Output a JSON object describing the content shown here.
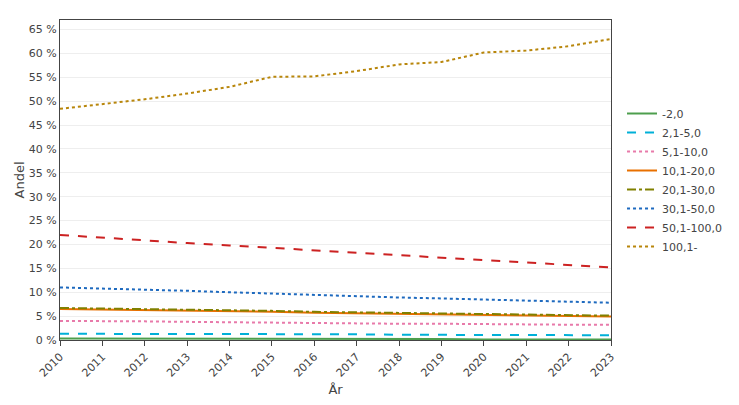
{
  "chart_data": {
    "type": "line",
    "x": [
      2010,
      2011,
      2012,
      2013,
      2014,
      2015,
      2016,
      2017,
      2018,
      2019,
      2020,
      2021,
      2022,
      2023
    ],
    "series": [
      {
        "name": "-2,0",
        "color": "#4d9e4d",
        "line_style": "solid",
        "values": [
          0.3,
          0.3,
          0.3,
          0.3,
          0.2,
          0.2,
          0.2,
          0.2,
          0.2,
          0.2,
          0.1,
          0.1,
          0.1,
          0.1
        ]
      },
      {
        "name": "2,1-5,0",
        "color": "#00b0d8",
        "line_style": "dash",
        "values": [
          1.3,
          1.3,
          1.3,
          1.3,
          1.2,
          1.2,
          1.2,
          1.2,
          1.1,
          1.1,
          1.1,
          1.0,
          1.0,
          1.0
        ]
      },
      {
        "name": "5,1-10,0",
        "color": "#e87aaa",
        "line_style": "dot",
        "values": [
          4.0,
          4.0,
          3.9,
          3.8,
          3.7,
          3.6,
          3.5,
          3.5,
          3.4,
          3.4,
          3.3,
          3.3,
          3.2,
          3.2
        ]
      },
      {
        "name": "10,1-20,0",
        "color": "#e87000",
        "line_style": "solid",
        "values": [
          6.5,
          6.4,
          6.3,
          6.2,
          6.0,
          5.9,
          5.7,
          5.6,
          5.5,
          5.4,
          5.3,
          5.2,
          5.0,
          4.9
        ]
      },
      {
        "name": "20,1-30,0",
        "color": "#808000",
        "line_style": "dashdot",
        "values": [
          6.7,
          6.6,
          6.5,
          6.4,
          6.3,
          6.1,
          5.9,
          5.8,
          5.7,
          5.6,
          5.5,
          5.4,
          5.3,
          5.1
        ]
      },
      {
        "name": "30,1-50,0",
        "color": "#1e6abf",
        "line_style": "dot",
        "values": [
          11.0,
          10.8,
          10.6,
          10.3,
          10.0,
          9.7,
          9.4,
          9.1,
          8.9,
          8.7,
          8.5,
          8.3,
          8.0,
          7.8
        ]
      },
      {
        "name": "50,1-100,0",
        "color": "#cc2222",
        "line_style": "dash",
        "values": [
          22.0,
          21.4,
          20.9,
          20.3,
          19.8,
          19.3,
          18.8,
          18.3,
          17.8,
          17.3,
          16.8,
          16.3,
          15.8,
          15.2
        ]
      },
      {
        "name": "100,1-",
        "color": "#b8860b",
        "line_style": "dot",
        "values": [
          48.4,
          49.4,
          50.4,
          51.6,
          53.0,
          55.1,
          55.2,
          56.3,
          57.7,
          58.2,
          60.2,
          60.6,
          61.5,
          63.0
        ]
      }
    ],
    "xlabel": "År",
    "ylabel": "Andel",
    "xlim": [
      2010,
      2023
    ],
    "xticks": [
      2010,
      2011,
      2012,
      2013,
      2014,
      2015,
      2016,
      2017,
      2018,
      2019,
      2020,
      2021,
      2022,
      2023
    ],
    "ylim": [
      0,
      67
    ],
    "yticks": [
      {
        "value": 0,
        "label": "0 %"
      },
      {
        "value": 5,
        "label": "5 %"
      },
      {
        "value": 10,
        "label": "10 %"
      },
      {
        "value": 15,
        "label": "15 %"
      },
      {
        "value": 20,
        "label": "20 %"
      },
      {
        "value": 25,
        "label": "25 %"
      },
      {
        "value": 30,
        "label": "30 %"
      },
      {
        "value": 35,
        "label": "35 %"
      },
      {
        "value": 40,
        "label": "40 %"
      },
      {
        "value": 45,
        "label": "45 %"
      },
      {
        "value": 50,
        "label": "50 %"
      },
      {
        "value": 55,
        "label": "55 %"
      },
      {
        "value": 60,
        "label": "60 %"
      },
      {
        "value": 65,
        "label": "65 %"
      }
    ],
    "grid": "y",
    "legend": "right"
  }
}
